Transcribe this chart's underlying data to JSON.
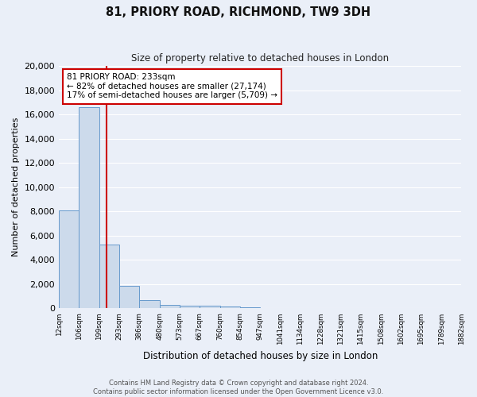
{
  "title": "81, PRIORY ROAD, RICHMOND, TW9 3DH",
  "subtitle": "Size of property relative to detached houses in London",
  "xlabel": "Distribution of detached houses by size in London",
  "ylabel": "Number of detached properties",
  "bin_labels": [
    "12sqm",
    "106sqm",
    "199sqm",
    "293sqm",
    "386sqm",
    "480sqm",
    "573sqm",
    "667sqm",
    "760sqm",
    "854sqm",
    "947sqm",
    "1041sqm",
    "1134sqm",
    "1228sqm",
    "1321sqm",
    "1415sqm",
    "1508sqm",
    "1602sqm",
    "1695sqm",
    "1789sqm",
    "1882sqm"
  ],
  "bar_heights": [
    8100,
    16600,
    5300,
    1850,
    700,
    300,
    220,
    200,
    160,
    120,
    0,
    0,
    0,
    0,
    0,
    0,
    0,
    0,
    0,
    0
  ],
  "bar_color": "#ccdaeb",
  "bar_edge_color": "#6699cc",
  "annotation_text": "81 PRIORY ROAD: 233sqm\n← 82% of detached houses are smaller (27,174)\n17% of semi-detached houses are larger (5,709) →",
  "vline_x": 2.36,
  "vline_color": "#cc0000",
  "ylim": [
    0,
    20000
  ],
  "yticks": [
    0,
    2000,
    4000,
    6000,
    8000,
    10000,
    12000,
    14000,
    16000,
    18000,
    20000
  ],
  "annotation_box_color": "#ffffff",
  "annotation_box_edge": "#cc0000",
  "bg_color": "#eaeff8",
  "grid_color": "#ffffff",
  "footer_line1": "Contains HM Land Registry data © Crown copyright and database right 2024.",
  "footer_line2": "Contains public sector information licensed under the Open Government Licence v3.0."
}
